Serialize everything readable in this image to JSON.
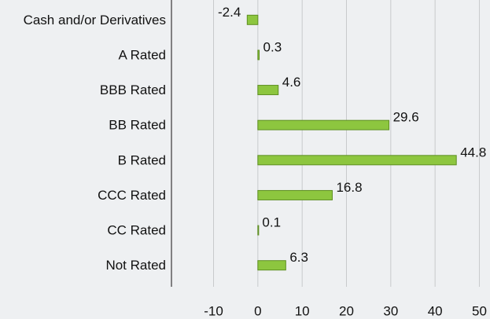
{
  "chart_data": {
    "type": "barh",
    "categories": [
      "Cash and/or Derivatives",
      "A Rated",
      "BBB Rated",
      "BB Rated",
      "B Rated",
      "CCC Rated",
      "CC Rated",
      "Not Rated"
    ],
    "values": [
      -2.4,
      0.3,
      4.6,
      29.6,
      44.8,
      16.8,
      0.1,
      6.3
    ],
    "color": "#8dc63f",
    "xlim": [
      -19.5,
      52.4
    ],
    "xticks": [
      -10,
      0,
      10,
      20,
      30,
      40,
      50
    ],
    "grid": true
  }
}
